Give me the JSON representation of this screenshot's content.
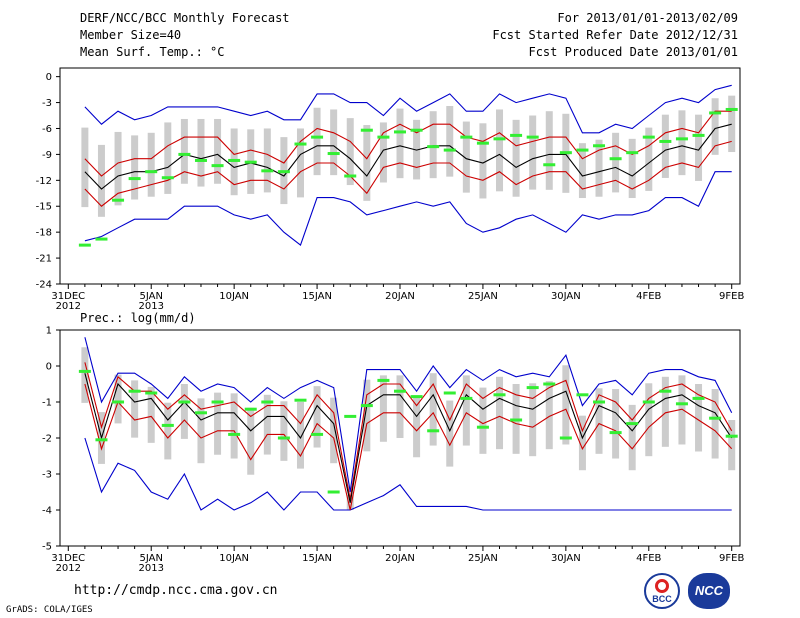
{
  "header": {
    "title": "DERF/NCC/BCC Monthly Forecast",
    "member": "Member Size=40",
    "variable": "Mean Surf. Temp.: °C",
    "period": "For 2013/01/01-2013/02/09",
    "started": "Fcst Started Refer Date 2012/12/31",
    "produced": "Fcst Produced Date 2013/01/01"
  },
  "footer": {
    "url": "http://cmdp.ncc.cma.gov.cn",
    "grads": "GrADS: COLA/IGES",
    "bcc_logo_text": "BCC",
    "ncc_logo_text": "NCC"
  },
  "colors": {
    "box": "#cccccc",
    "obs": "#33ee33",
    "mean": "#000000",
    "spread": "#cc0000",
    "range": "#0000cc"
  },
  "chart_data": [
    {
      "type": "line",
      "title": "Mean Surf. Temp.: °C",
      "xlabel": "",
      "ylabel": "",
      "x": [
        1,
        2,
        3,
        4,
        5,
        6,
        7,
        8,
        9,
        10,
        11,
        12,
        13,
        14,
        15,
        16,
        17,
        18,
        19,
        20,
        21,
        22,
        23,
        24,
        25,
        26,
        27,
        28,
        29,
        30,
        31,
        32,
        33,
        34,
        35,
        36,
        37,
        38,
        39,
        40
      ],
      "x_tick_labels": [
        "31DEC",
        "5JAN",
        "10JAN",
        "15JAN",
        "20JAN",
        "25JAN",
        "30JAN",
        "4FEB",
        "9FEB"
      ],
      "x_tick_values": [
        0,
        5,
        10,
        15,
        20,
        25,
        30,
        35,
        40
      ],
      "x_tick_sublabels": [
        "2012",
        "2013"
      ],
      "ylim": [
        -24,
        1
      ],
      "y_ticks": [
        0,
        -3,
        -6,
        -9,
        -12,
        -15,
        -18,
        -21,
        -24
      ],
      "series": [
        {
          "name": "ensemble max",
          "values": [
            -3.5,
            -5.5,
            -4,
            -5,
            -4.5,
            -3.5,
            -3.5,
            -3.5,
            -3.5,
            -4,
            -4.5,
            -4,
            -5,
            -5,
            -2,
            -2,
            -3,
            -3,
            -4.5,
            -2.5,
            -4,
            -3,
            -2,
            -4,
            -4,
            -2,
            -3,
            -2.5,
            -2,
            -2.5,
            -6.5,
            -6.5,
            -5.5,
            -6,
            -4.5,
            -3,
            -2.5,
            -3,
            -1.5,
            -1
          ]
        },
        {
          "name": "upper spread",
          "values": [
            -9.5,
            -11.5,
            -10,
            -9.5,
            -9.5,
            -8,
            -7,
            -7,
            -7,
            -9,
            -8.5,
            -9,
            -10,
            -7.5,
            -6,
            -6.5,
            -7.5,
            -9.5,
            -6.5,
            -5.5,
            -6.5,
            -5.5,
            -5.5,
            -7,
            -7.5,
            -6.5,
            -8,
            -7.5,
            -7,
            -7,
            -9.5,
            -8.5,
            -8,
            -9,
            -8,
            -6.5,
            -6,
            -6.5,
            -4,
            -4
          ]
        },
        {
          "name": "ensemble mean",
          "values": [
            -11,
            -13,
            -11.5,
            -11,
            -11,
            -10.5,
            -9,
            -9.5,
            -9,
            -10.5,
            -10,
            -10.5,
            -11.5,
            -9,
            -8,
            -8,
            -9.5,
            -11.5,
            -8.5,
            -8,
            -8.5,
            -8,
            -8,
            -9.5,
            -10,
            -9,
            -10.5,
            -9.5,
            -9,
            -9,
            -11.5,
            -11,
            -10.5,
            -11.5,
            -10,
            -8.5,
            -8,
            -8.5,
            -6,
            -5.5
          ]
        },
        {
          "name": "lower spread",
          "values": [
            -13,
            -15,
            -13.5,
            -13,
            -12.5,
            -12,
            -11,
            -11.5,
            -11,
            -12.5,
            -12,
            -12,
            -13,
            -11,
            -10,
            -10,
            -11.5,
            -13.5,
            -10.5,
            -10,
            -10.5,
            -10,
            -10,
            -11.5,
            -12,
            -11,
            -12.5,
            -11.5,
            -11,
            -11,
            -13,
            -12.5,
            -12,
            -13,
            -12,
            -10.5,
            -10,
            -10.5,
            -8,
            -7.5
          ]
        },
        {
          "name": "ensemble min",
          "values": [
            -19,
            -18.5,
            -17.5,
            -16.5,
            -16.5,
            -16.5,
            -15,
            -15,
            -15,
            -16,
            -16.5,
            -16,
            -18,
            -19.5,
            -14,
            -14,
            -14.5,
            -16,
            -15.5,
            -15,
            -14.5,
            -15,
            -14.5,
            -17,
            -18,
            -17.5,
            -16.5,
            -16,
            -17,
            -18,
            -16,
            -16.5,
            -16,
            -16,
            -15.5,
            -14,
            -14,
            -15,
            -11,
            -11
          ]
        },
        {
          "name": "observation",
          "values": [
            -19.5,
            -18.8,
            -14.3,
            -11.8,
            -11,
            -11.7,
            -9,
            -9.7,
            -10.3,
            -9.7,
            -9.9,
            -10.9,
            -11,
            -7.8,
            -7,
            -8.9,
            -11.5,
            -6.2,
            -7,
            -6.4,
            -6.2,
            -8.1,
            -8.5,
            -7,
            -7.7,
            -7.2,
            -6.8,
            -7,
            -10.2,
            -8.8,
            -8.5,
            -8,
            -9.5,
            -8.8,
            -7,
            -7.5,
            -7.2,
            -6.8,
            -4.2,
            -3.8
          ]
        }
      ]
    },
    {
      "type": "line",
      "title": "Prec.: log(mm/d)",
      "xlabel": "",
      "ylabel": "",
      "x": [
        1,
        2,
        3,
        4,
        5,
        6,
        7,
        8,
        9,
        10,
        11,
        12,
        13,
        14,
        15,
        16,
        17,
        18,
        19,
        20,
        21,
        22,
        23,
        24,
        25,
        26,
        27,
        28,
        29,
        30,
        31,
        32,
        33,
        34,
        35,
        36,
        37,
        38,
        39,
        40
      ],
      "x_tick_labels": [
        "31DEC",
        "5JAN",
        "10JAN",
        "15JAN",
        "20JAN",
        "25JAN",
        "30JAN",
        "4FEB",
        "9FEB"
      ],
      "x_tick_values": [
        0,
        5,
        10,
        15,
        20,
        25,
        30,
        35,
        40
      ],
      "x_tick_sublabels": [
        "2012",
        "2013"
      ],
      "ylim": [
        -5,
        1
      ],
      "y_ticks": [
        1,
        0,
        -1,
        -2,
        -3,
        -4,
        -5
      ],
      "series": [
        {
          "name": "ensemble max",
          "values": [
            0.8,
            -1,
            -0.2,
            -0.2,
            -0.5,
            -0.9,
            -0.3,
            -0.7,
            -0.5,
            -0.6,
            -1,
            -0.6,
            -0.9,
            -0.6,
            -0.4,
            -0.6,
            -3.5,
            -0.1,
            -0.1,
            -0.1,
            -0.7,
            0,
            -0.6,
            -0.1,
            -0.4,
            -0.1,
            -0.3,
            -0.2,
            -0.3,
            0.3,
            -1.1,
            -0.5,
            -0.4,
            -0.8,
            -0.2,
            -0.1,
            -0.1,
            -0.3,
            -0.4,
            -1.3
          ]
        },
        {
          "name": "upper spread",
          "values": [
            0.1,
            -1.7,
            -0.3,
            -0.7,
            -0.7,
            -1.2,
            -0.8,
            -1.2,
            -1.1,
            -1,
            -1.4,
            -1.1,
            -1.1,
            -1.6,
            -0.8,
            -1.3,
            -3.7,
            -0.8,
            -0.5,
            -0.5,
            -1.1,
            -0.5,
            -1.5,
            -0.5,
            -0.9,
            -0.6,
            -0.8,
            -0.9,
            -0.6,
            -0.4,
            -1.8,
            -0.8,
            -1,
            -1.5,
            -0.9,
            -0.6,
            -0.5,
            -0.8,
            -1,
            -1.8
          ]
        },
        {
          "name": "ensemble mean",
          "values": [
            -0.2,
            -2,
            -0.5,
            -1,
            -0.9,
            -1.5,
            -1,
            -1.5,
            -1.3,
            -1.3,
            -1.8,
            -1.4,
            -1.4,
            -2,
            -1.1,
            -1.6,
            -3.8,
            -1.1,
            -0.8,
            -0.8,
            -1.4,
            -0.8,
            -1.8,
            -0.8,
            -1.2,
            -0.9,
            -1.1,
            -1.2,
            -0.9,
            -0.7,
            -2,
            -1.1,
            -1.3,
            -1.8,
            -1.2,
            -0.9,
            -0.8,
            -1.1,
            -1.3,
            -2
          ]
        },
        {
          "name": "lower spread",
          "values": [
            -0.5,
            -2.3,
            -1,
            -1.5,
            -1.4,
            -2,
            -1.5,
            -2,
            -1.8,
            -1.8,
            -2.6,
            -1.9,
            -1.9,
            -2.5,
            -1.6,
            -2,
            -4,
            -1.6,
            -1.3,
            -1.3,
            -1.8,
            -1.3,
            -2.2,
            -1.3,
            -1.6,
            -1.4,
            -1.6,
            -1.7,
            -1.4,
            -1.2,
            -2.3,
            -1.6,
            -1.8,
            -2.3,
            -1.7,
            -1.3,
            -1.2,
            -1.5,
            -1.8,
            -2.3
          ]
        },
        {
          "name": "ensemble min",
          "values": [
            -2,
            -3.5,
            -2.7,
            -2.9,
            -3.5,
            -3.7,
            -3,
            -4,
            -3.7,
            -4,
            -3.8,
            -3.5,
            -4,
            -3.5,
            -3.5,
            -4,
            -4,
            -3.8,
            -3.6,
            -3.3,
            -3.9,
            -3.9,
            -3.9,
            -3.9,
            -4,
            -4,
            -4,
            -4,
            -4,
            -4,
            -4,
            -4,
            -4,
            -4,
            -4,
            -4,
            -4,
            -4,
            -4,
            -4
          ]
        },
        {
          "name": "observation",
          "values": [
            -0.15,
            -2.05,
            -1,
            -0.7,
            -0.75,
            -1.65,
            -1,
            -1.3,
            -1,
            -1.9,
            -1.2,
            -1,
            -2,
            -0.95,
            -1.9,
            -3.5,
            -1.4,
            -1.1,
            -0.4,
            -0.7,
            -0.85,
            -1.8,
            -0.75,
            -0.9,
            -1.7,
            -0.8,
            -1.5,
            -0.6,
            -0.5,
            -2,
            -0.8,
            -1,
            -1.85,
            -1.6,
            -1,
            -0.7,
            -1.05,
            -0.9,
            -1.45,
            -1.95
          ]
        }
      ]
    }
  ]
}
